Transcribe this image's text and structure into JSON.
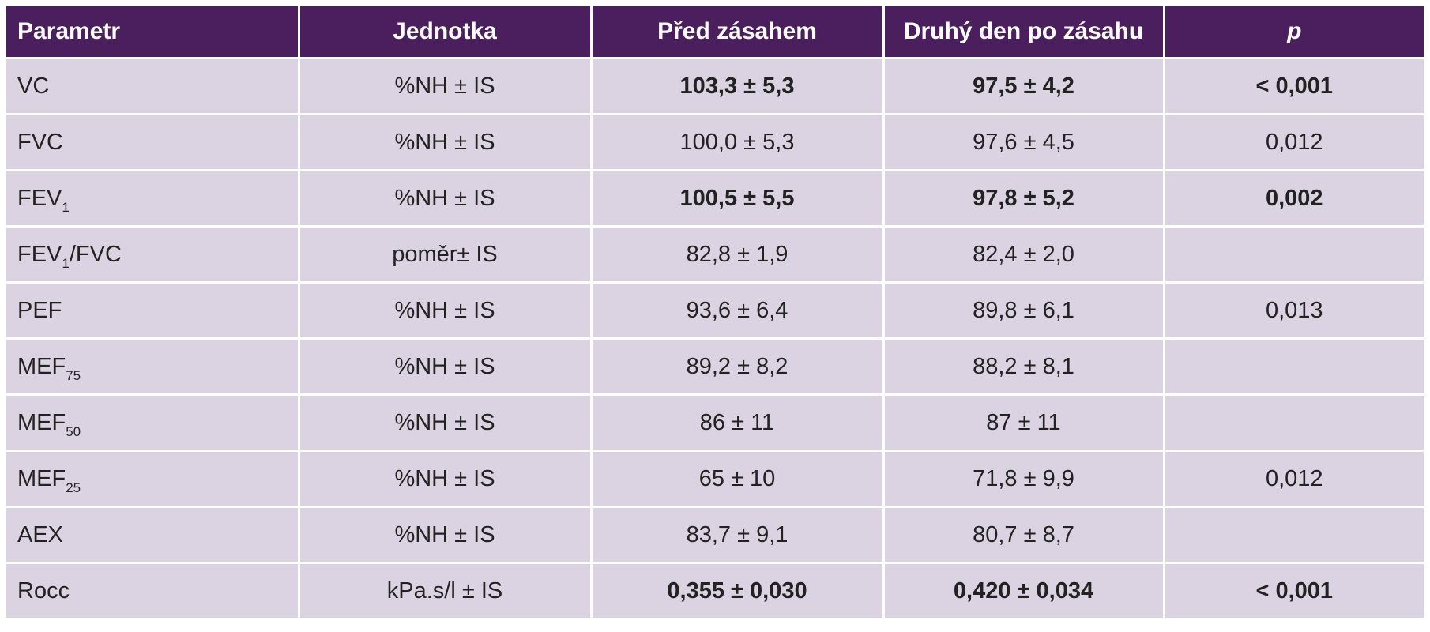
{
  "table": {
    "headers": {
      "parametr": "Parametr",
      "jednotka": "Jednotka",
      "pred": "Před zásahem",
      "po": "Druhý den po zásahu",
      "p": "p"
    },
    "rows": [
      {
        "param": "VC",
        "sub": "",
        "param_tail": "",
        "unit": "%NH ± IS",
        "pred": "103,3 ± 5,3",
        "po": "97,5 ± 4,2",
        "p": "< 0,001",
        "bold": true
      },
      {
        "param": "FVC",
        "sub": "",
        "param_tail": "",
        "unit": "%NH ± IS",
        "pred": "100,0 ± 5,3",
        "po": "97,6 ± 4,5",
        "p": "0,012",
        "bold": false
      },
      {
        "param": "FEV",
        "sub": "1",
        "param_tail": "",
        "unit": "%NH ± IS",
        "pred": "100,5 ± 5,5",
        "po": "97,8 ± 5,2",
        "p": "0,002",
        "bold": true
      },
      {
        "param": "FEV",
        "sub": "1",
        "param_tail": "/FVC",
        "unit": "poměr± IS",
        "pred": "82,8 ± 1,9",
        "po": "82,4 ± 2,0",
        "p": "",
        "bold": false
      },
      {
        "param": "PEF",
        "sub": "",
        "param_tail": "",
        "unit": "%NH ± IS",
        "pred": "93,6 ± 6,4",
        "po": "89,8 ± 6,1",
        "p": "0,013",
        "bold": false
      },
      {
        "param": "MEF",
        "sub": "75",
        "param_tail": "",
        "unit": "%NH ± IS",
        "pred": "89,2 ± 8,2",
        "po": "88,2 ± 8,1",
        "p": "",
        "bold": false
      },
      {
        "param": "MEF",
        "sub": "50",
        "param_tail": "",
        "unit": "%NH ± IS",
        "pred": "86 ± 11",
        "po": "87 ± 11",
        "p": "",
        "bold": false
      },
      {
        "param": "MEF",
        "sub": "25",
        "param_tail": "",
        "unit": "%NH ± IS",
        "pred": "65 ± 10",
        "po": "71,8 ± 9,9",
        "p": "0,012",
        "bold": false
      },
      {
        "param": "AEX",
        "sub": "",
        "param_tail": "",
        "unit": "%NH ± IS",
        "pred": "83,7 ± 9,1",
        "po": "80,7 ± 8,7",
        "p": "",
        "bold": false
      },
      {
        "param": "Rocc",
        "sub": "",
        "param_tail": "",
        "unit": "kPa.s/l ± IS",
        "pred": "0,355 ± 0,030",
        "po": "0,420 ± 0,034",
        "p": "< 0,001",
        "bold": true
      }
    ]
  },
  "colors": {
    "header_bg": "#4b1f5e",
    "header_text": "#ffffff",
    "row_bg": "#dcd3e2",
    "text": "#222222"
  }
}
